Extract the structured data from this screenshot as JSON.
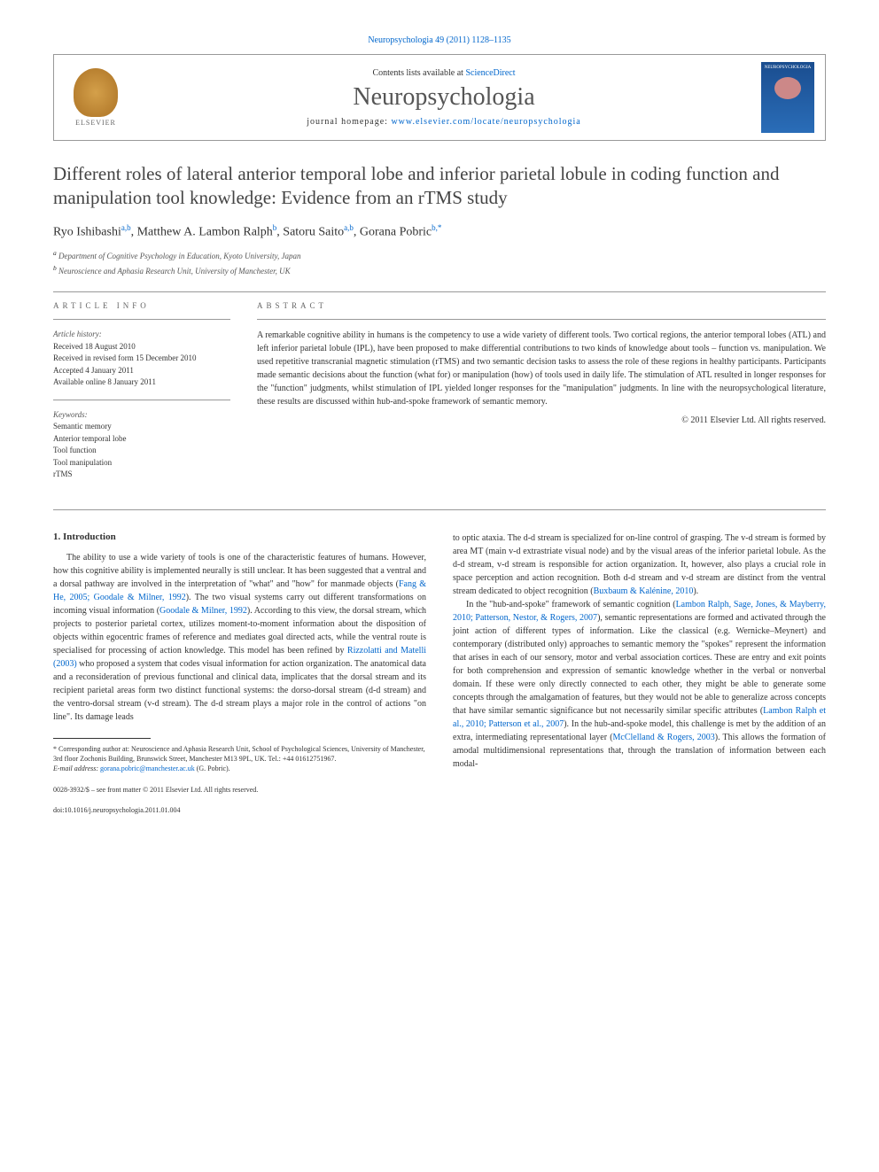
{
  "header": {
    "running_head": "Neuropsychologia 49 (2011) 1128–1135",
    "contents_prefix": "Contents lists available at ",
    "contents_link": "ScienceDirect",
    "journal_name": "Neuropsychologia",
    "homepage_prefix": "journal homepage: ",
    "homepage_link": "www.elsevier.com/locate/neuropsychologia",
    "publisher": "ELSEVIER",
    "cover_label": "NEUROPSYCHOLOGIA"
  },
  "article": {
    "title": "Different roles of lateral anterior temporal lobe and inferior parietal lobule in coding function and manipulation tool knowledge: Evidence from an rTMS study",
    "authors_html": "Ryo Ishibashi",
    "author1": "Ryo Ishibashi",
    "author1_aff": "a,b",
    "author2": "Matthew A. Lambon Ralph",
    "author2_aff": "b",
    "author3": "Satoru Saito",
    "author3_aff": "a,b",
    "author4": "Gorana Pobric",
    "author4_aff": "b,",
    "corr_marker": "*",
    "affiliation_a": "Department of Cognitive Psychology in Education, Kyoto University, Japan",
    "affiliation_b": "Neuroscience and Aphasia Research Unit, University of Manchester, UK"
  },
  "meta": {
    "info_label": "article info",
    "abstract_label": "abstract",
    "history_label": "Article history:",
    "received": "Received 18 August 2010",
    "revised": "Received in revised form 15 December 2010",
    "accepted": "Accepted 4 January 2011",
    "online": "Available online 8 January 2011",
    "keywords_label": "Keywords:",
    "kw1": "Semantic memory",
    "kw2": "Anterior temporal lobe",
    "kw3": "Tool function",
    "kw4": "Tool manipulation",
    "kw5": "rTMS"
  },
  "abstract": {
    "text": "A remarkable cognitive ability in humans is the competency to use a wide variety of different tools. Two cortical regions, the anterior temporal lobes (ATL) and left inferior parietal lobule (IPL), have been proposed to make differential contributions to two kinds of knowledge about tools – function vs. manipulation. We used repetitive transcranial magnetic stimulation (rTMS) and two semantic decision tasks to assess the role of these regions in healthy participants. Participants made semantic decisions about the function (what for) or manipulation (how) of tools used in daily life. The stimulation of ATL resulted in longer responses for the \"function\" judgments, whilst stimulation of IPL yielded longer responses for the \"manipulation\" judgments. In line with the neuropsychological literature, these results are discussed within hub-and-spoke framework of semantic memory.",
    "copyright": "© 2011 Elsevier Ltd. All rights reserved."
  },
  "body": {
    "section1_heading": "1. Introduction",
    "col1_p1_a": "The ability to use a wide variety of tools is one of the characteristic features of humans. However, how this cognitive ability is implemented neurally is still unclear. It has been suggested that a ventral and a dorsal pathway are involved in the interpretation of \"what\" and \"how\" for manmade objects (",
    "col1_cite1": "Fang & He, 2005; Goodale & Milner, 1992",
    "col1_p1_b": "). The two visual systems carry out different transformations on incoming visual information (",
    "col1_cite2": "Goodale & Milner, 1992",
    "col1_p1_c": "). According to this view, the dorsal stream, which projects to posterior parietal cortex, utilizes moment-to-moment information about the disposition of objects within egocentric frames of reference and mediates goal directed acts, while the ventral route is specialised for processing of action knowledge. This model has been refined by ",
    "col1_cite3": "Rizzolatti and Matelli (2003)",
    "col1_p1_d": " who proposed a system that codes visual information for action organization. The anatomical data and a reconsideration of previous functional and clinical data, implicates that the dorsal stream and its recipient parietal areas form two distinct functional systems: the dorso-dorsal stream (d-d stream) and the ventro-dorsal stream (v-d stream). The d-d stream plays a major role in the control of actions \"on line\". Its damage leads",
    "col2_p1_a": "to optic ataxia. The d-d stream is specialized for on-line control of grasping. The v-d stream is formed by area MT (main v-d extrastriate visual node) and by the visual areas of the inferior parietal lobule. As the d-d stream, v-d stream is responsible for action organization. It, however, also plays a crucial role in space perception and action recognition. Both d-d stream and v-d stream are distinct from the ventral stream dedicated to object recognition (",
    "col2_cite1": "Buxbaum & Kalénine, 2010",
    "col2_p1_b": ").",
    "col2_p2_a": "In the \"hub-and-spoke\" framework of semantic cognition (",
    "col2_cite2": "Lambon Ralph, Sage, Jones, & Mayberry, 2010; Patterson, Nestor, & Rogers, 2007",
    "col2_p2_b": "), semantic representations are formed and activated through the joint action of different types of information. Like the classical (e.g. Wernicke–Meynert) and contemporary (distributed only) approaches to semantic memory the \"spokes\" represent the information that arises in each of our sensory, motor and verbal association cortices. These are entry and exit points for both comprehension and expression of semantic knowledge whether in the verbal or nonverbal domain. If these were only directly connected to each other, they might be able to generate some concepts through the amalgamation of features, but they would not be able to generalize across concepts that have similar semantic significance but not necessarily similar specific attributes (",
    "col2_cite3": "Lambon Ralph et al., 2010; Patterson et al., 2007",
    "col2_p2_c": "). In the hub-and-spoke model, this challenge is met by the addition of an extra, intermediating representational layer (",
    "col2_cite4": "McClelland & Rogers, 2003",
    "col2_p2_d": "). This allows the formation of amodal multidimensional representations that, through the translation of information between each modal-"
  },
  "footnote": {
    "corr_marker": "*",
    "corr_text": "Corresponding author at: Neuroscience and Aphasia Research Unit, School of Psychological Sciences, University of Manchester, 3rd floor Zochonis Building, Brunswick Street, Manchester M13 9PL, UK. Tel.: +44 01612751967.",
    "email_label": "E-mail address: ",
    "email": "gorana.pobric@manchester.ac.uk",
    "email_person": " (G. Pobric)."
  },
  "footer": {
    "issn_text": "0028-3932/$ – see front matter © 2011 Elsevier Ltd. All rights reserved.",
    "doi": "doi:10.1016/j.neuropsychologia.2011.01.004"
  },
  "colors": {
    "link": "#0066cc",
    "text": "#333333",
    "border": "#999999"
  },
  "typography": {
    "body_pt": 10,
    "title_pt": 21,
    "journal_pt": 28,
    "footnote_pt": 8
  }
}
